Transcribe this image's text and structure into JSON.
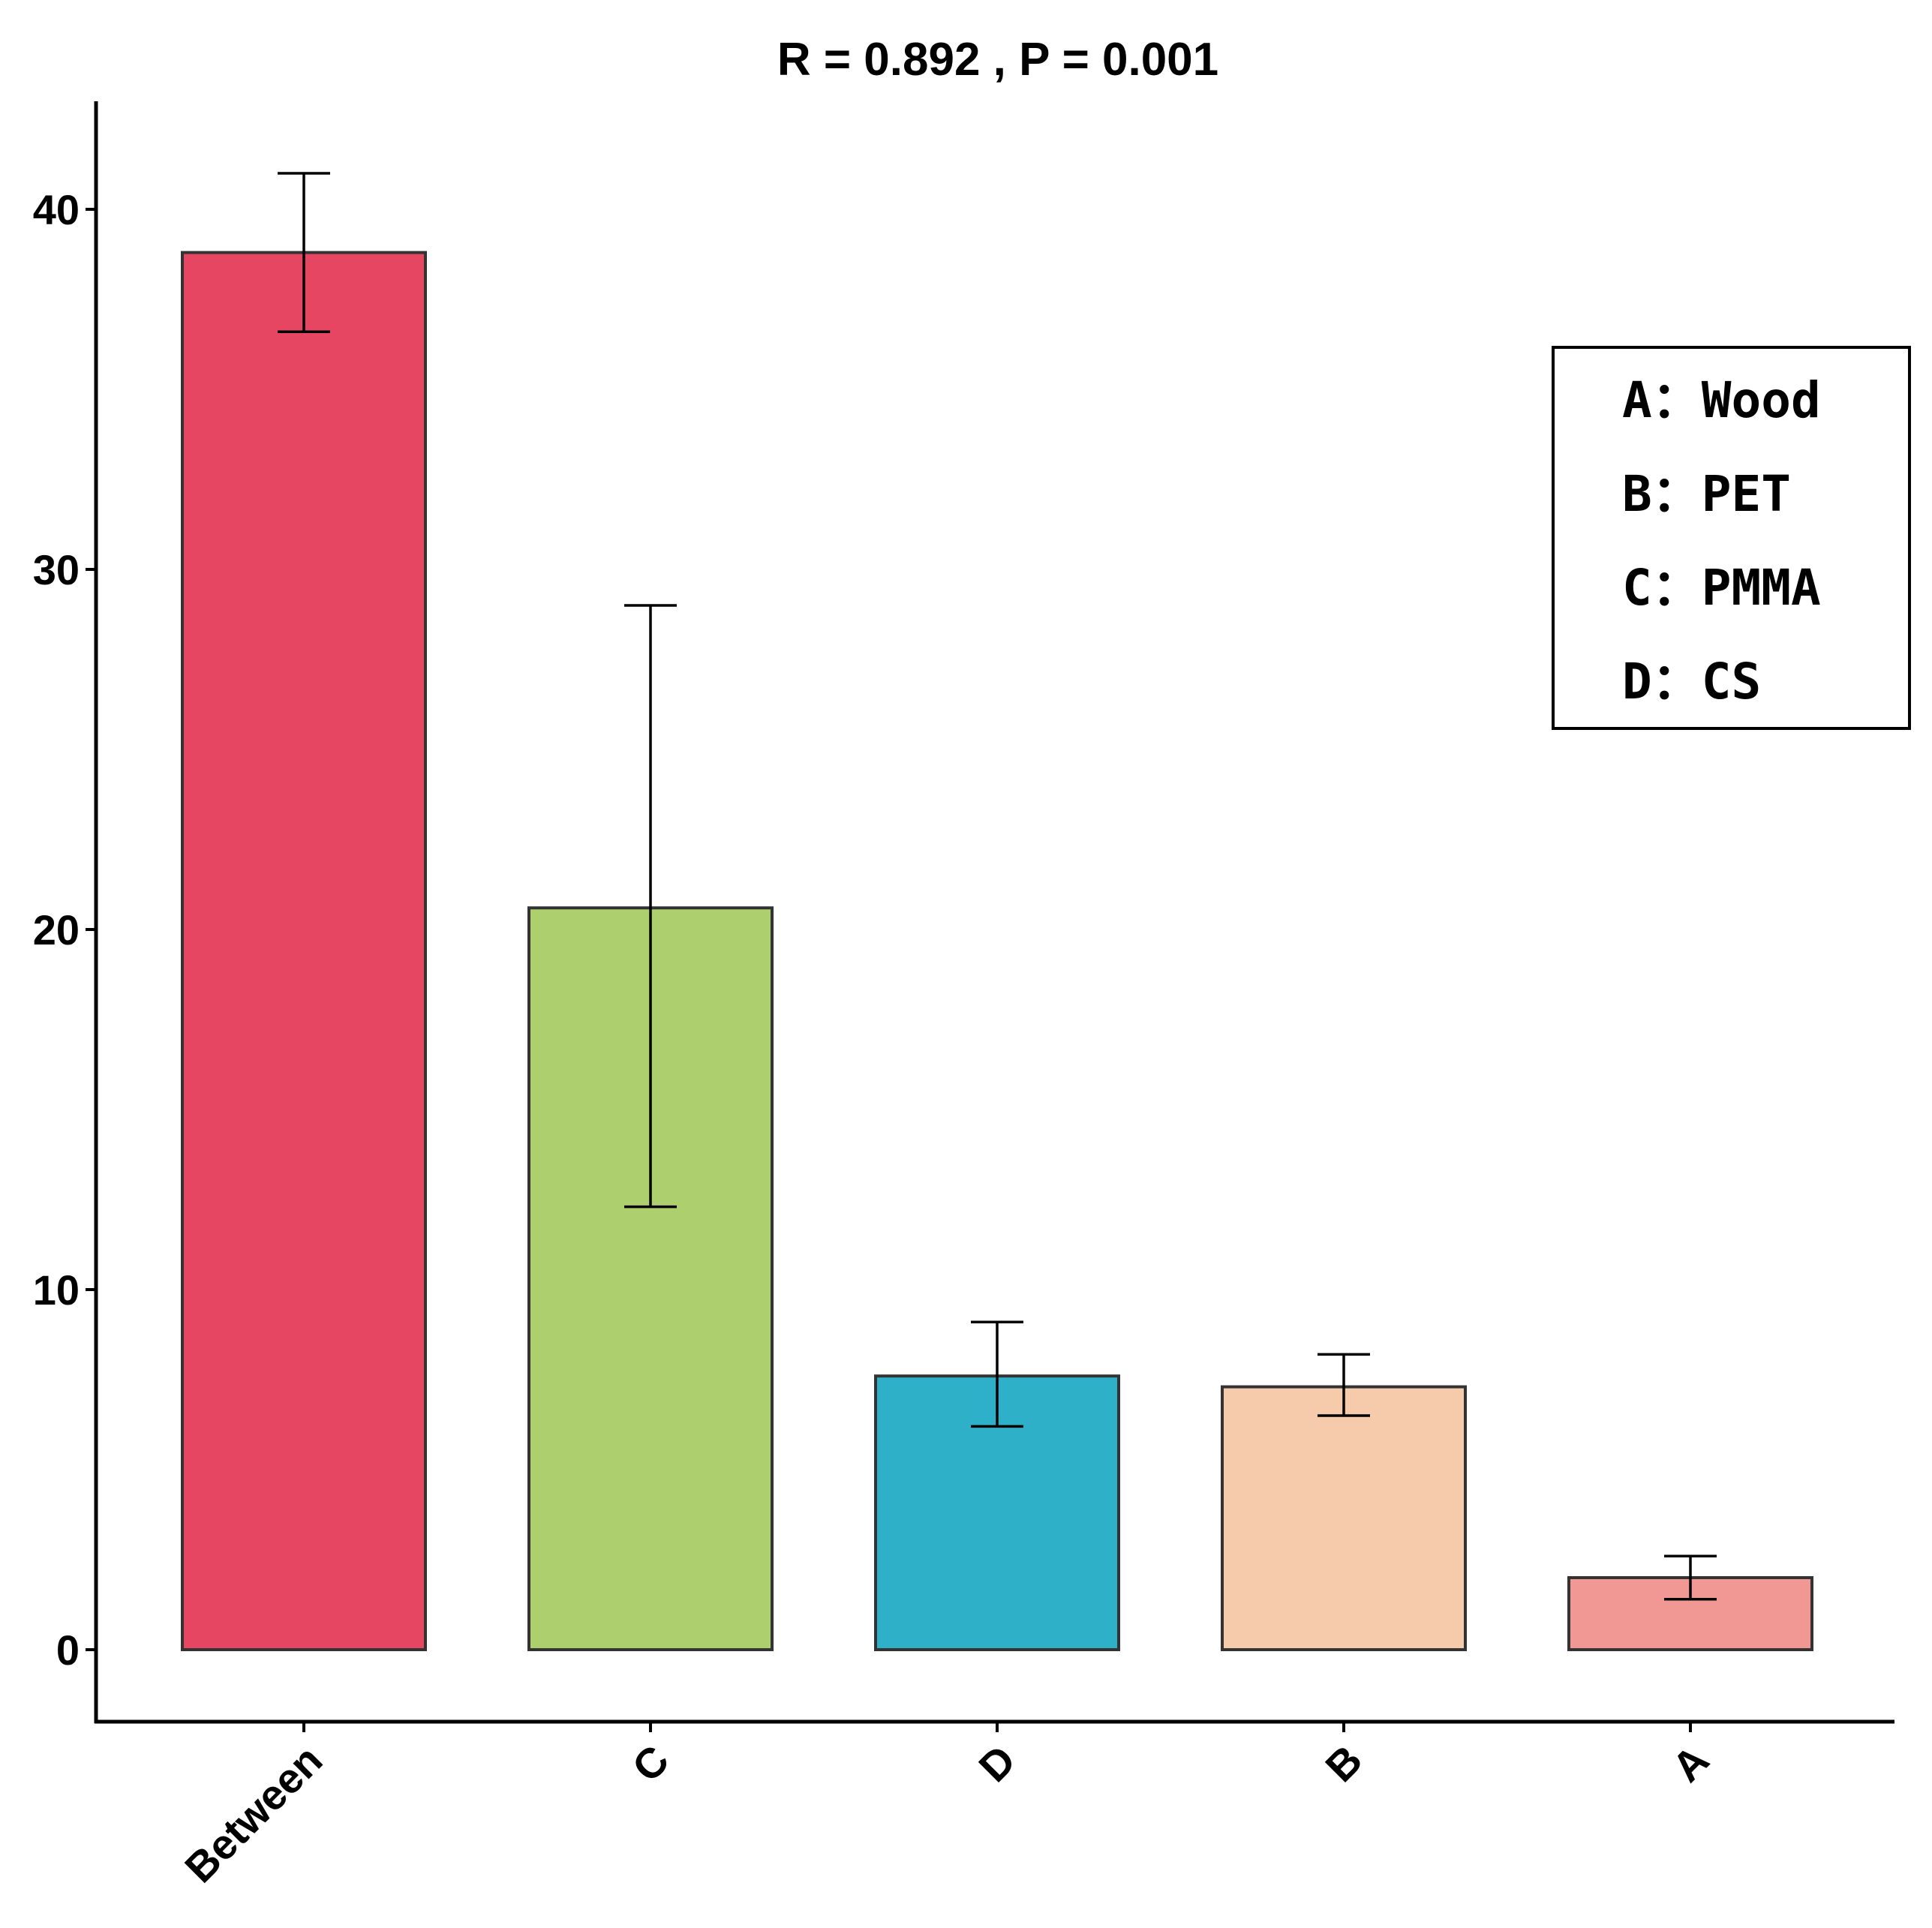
{
  "chart_data": {
    "type": "bar",
    "title": "R =  0.892 ,  P =  0.001",
    "xlabel": "",
    "ylabel": "",
    "categories": [
      "Between",
      "C",
      "D",
      "B",
      "A"
    ],
    "values": [
      38.8,
      20.6,
      7.6,
      7.3,
      2.0
    ],
    "error_low": [
      36.6,
      12.3,
      6.2,
      6.5,
      1.4
    ],
    "error_high": [
      41.0,
      29.0,
      9.1,
      8.2,
      2.6
    ],
    "colors": [
      "#E64661",
      "#ADCF6E",
      "#2FB0C9",
      "#F5CBAB",
      "#F19894"
    ],
    "ylim": [
      -2,
      43
    ],
    "yticks": [
      0,
      10,
      20,
      30,
      40
    ],
    "grid": false,
    "legend": {
      "placement": "top-right",
      "entries": [
        "A：Wood",
        "B：PET",
        "C：PMMA",
        "D：CS"
      ]
    }
  }
}
